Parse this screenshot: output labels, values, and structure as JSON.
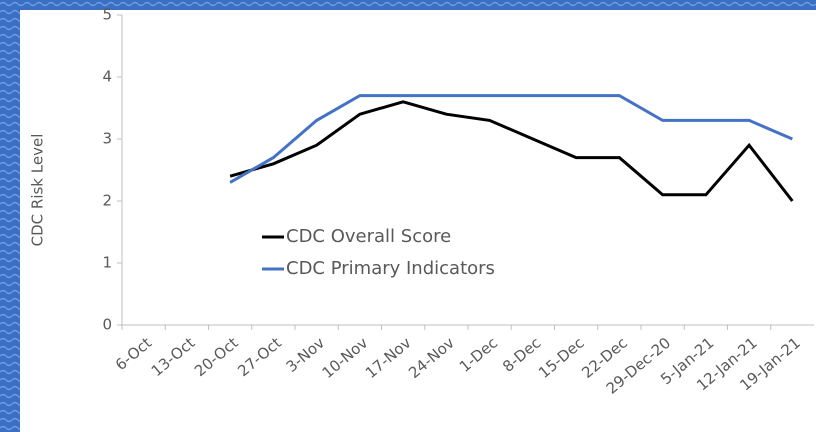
{
  "chart_data": {
    "type": "line",
    "y_label": "CDC Risk Level",
    "categories": [
      "6-Oct",
      "13-Oct",
      "20-Oct",
      "27-Oct",
      "3-Nov",
      "10-Nov",
      "17-Nov",
      "24-Nov",
      "1-Dec",
      "8-Dec",
      "15-Dec",
      "22-Dec",
      "29-Dec-20",
      "5-Jan-21",
      "12-Jan-21",
      "19-Jan-21"
    ],
    "series": [
      {
        "name": "CDC Overall Score",
        "color": "#000000",
        "values": [
          null,
          null,
          2.4,
          2.6,
          2.9,
          3.4,
          3.6,
          3.4,
          3.3,
          3.0,
          2.7,
          2.7,
          2.1,
          2.1,
          2.9,
          2.0
        ]
      },
      {
        "name": "CDC Primary Indicators",
        "color": "#4472c4",
        "values": [
          null,
          null,
          2.3,
          2.7,
          3.3,
          3.7,
          3.7,
          3.7,
          3.7,
          3.7,
          3.7,
          3.7,
          3.3,
          3.3,
          3.3,
          3.0
        ]
      }
    ],
    "ylim": [
      0,
      5
    ],
    "yticks": [
      0,
      1,
      2,
      3,
      4,
      5
    ],
    "grid": false
  }
}
